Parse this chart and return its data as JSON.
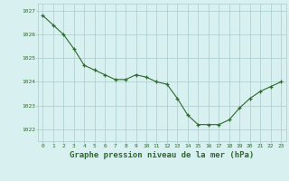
{
  "x": [
    0,
    1,
    2,
    3,
    4,
    5,
    6,
    7,
    8,
    9,
    10,
    11,
    12,
    13,
    14,
    15,
    16,
    17,
    18,
    19,
    20,
    21,
    22,
    23
  ],
  "y": [
    1026.8,
    1026.4,
    1026.0,
    1025.4,
    1024.7,
    1024.5,
    1024.3,
    1024.1,
    1024.1,
    1024.3,
    1024.2,
    1024.0,
    1023.9,
    1023.3,
    1022.6,
    1022.2,
    1022.2,
    1022.2,
    1022.4,
    1022.9,
    1023.3,
    1023.6,
    1023.8,
    1024.0
  ],
  "line_color": "#2d6a2d",
  "marker_color": "#2d6a2d",
  "bg_color": "#d9f0f0",
  "grid_color": "#aacccc",
  "text_color": "#2d6a2d",
  "xlabel": "Graphe pression niveau de la mer (hPa)",
  "ylim_min": 1021.5,
  "ylim_max": 1027.3,
  "yticks": [
    1022,
    1023,
    1024,
    1025,
    1026,
    1027
  ],
  "xticks": [
    0,
    1,
    2,
    3,
    4,
    5,
    6,
    7,
    8,
    9,
    10,
    11,
    12,
    13,
    14,
    15,
    16,
    17,
    18,
    19,
    20,
    21,
    22,
    23
  ],
  "tick_fontsize": 4.5,
  "xlabel_fontsize": 6.5
}
